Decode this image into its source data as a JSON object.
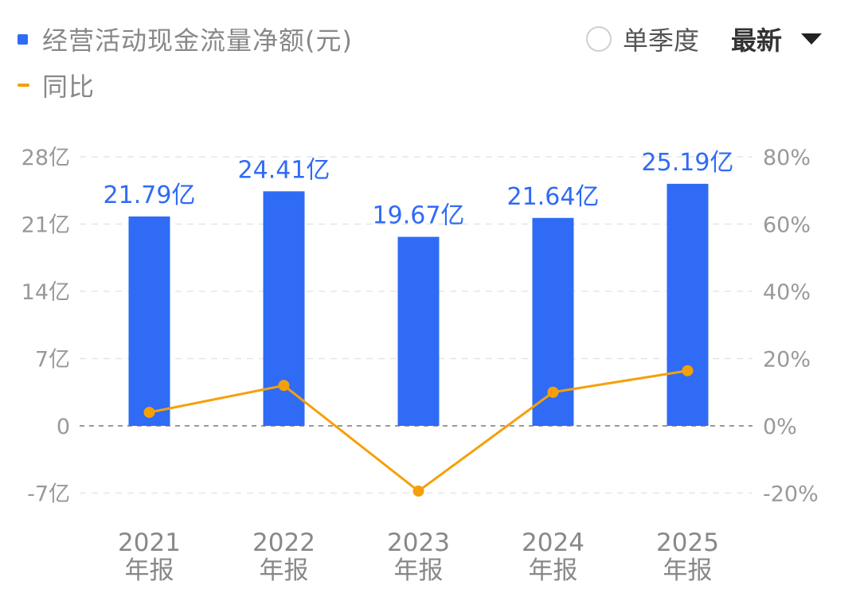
{
  "legend": {
    "bar_label": "经营活动现金流量净额(元)",
    "line_label": "同比"
  },
  "controls": {
    "single_quarter_label": "单季度",
    "sort_label": "最新",
    "single_quarter_checked": false
  },
  "colors": {
    "bar": "#2f6bf5",
    "line": "#f5a00a",
    "grid": "#e6e6e6",
    "zero_line": "#999999"
  },
  "icons": {
    "radio": "radio-unchecked-icon",
    "dropdown": "caret-down-icon"
  },
  "chart_data": {
    "type": "bar",
    "categories": [
      [
        "2021",
        "年报"
      ],
      [
        "2022",
        "年报"
      ],
      [
        "2023",
        "年报"
      ],
      [
        "2024",
        "年报"
      ],
      [
        "2025",
        "年报"
      ]
    ],
    "series": [
      {
        "name": "经营活动现金流量净额(元)",
        "type": "bar",
        "axis": "left",
        "values": [
          21.79,
          24.41,
          19.67,
          21.64,
          25.19
        ],
        "labels": [
          "21.79亿",
          "24.41亿",
          "19.67亿",
          "21.64亿",
          "25.19亿"
        ]
      },
      {
        "name": "同比",
        "type": "line",
        "axis": "right",
        "values": [
          4.0,
          12.0,
          -19.4,
          10.0,
          16.4
        ]
      }
    ],
    "y_left": {
      "ticks": [
        28,
        21,
        14,
        7,
        0,
        -7
      ],
      "tick_labels": [
        "28亿",
        "21亿",
        "14亿",
        "7亿",
        "0",
        "-7亿"
      ],
      "range": [
        -7,
        28
      ]
    },
    "y_right": {
      "ticks": [
        80,
        60,
        40,
        20,
        0,
        -20
      ],
      "tick_labels": [
        "80%",
        "60%",
        "40%",
        "20%",
        "0%",
        "-20%"
      ],
      "range": [
        -20,
        80
      ]
    },
    "grid": true
  }
}
